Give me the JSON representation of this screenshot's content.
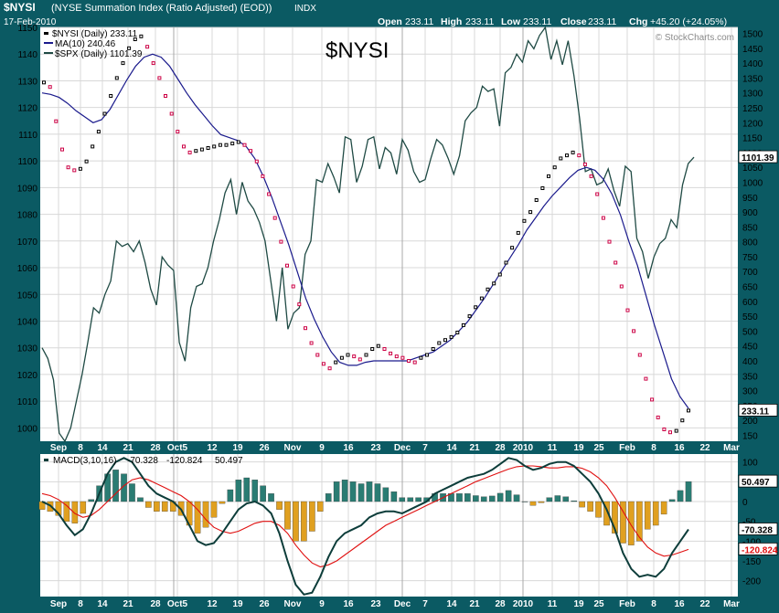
{
  "header": {
    "symbol": "$NYSI",
    "name": "(NYSE Summation Index (Ratio Adjusted) (EOD))",
    "exchange": "INDX",
    "date": "17-Feb-2010",
    "open_label": "Open",
    "open": "233.11",
    "high_label": "High",
    "high": "233.11",
    "low_label": "Low",
    "low": "233.11",
    "close_label": "Close",
    "close": "233.11",
    "chg_label": "Chg",
    "chg": "+45.20 (+24.05%)",
    "watermark": "© StockCharts.com",
    "big_symbol": "$NYSI"
  },
  "legend": {
    "nysi": "$NYSI (Daily) 233.11",
    "ma": "MA(10) 240.46",
    "spx": "$SPX (Daily) 1101.39",
    "macd_label": "MACD(3,10,16)",
    "macd_v1": "-70.328",
    "macd_v2": "-120.824",
    "macd_v3": "50.497"
  },
  "colors": {
    "nysi_up": "#000000",
    "nysi_down": "#cc0044",
    "ma": "#1a1a8c",
    "spx": "#1f4a44",
    "macd_line": "#0d3d3a",
    "signal": "#e01010",
    "hist_pos": "#2a7c73",
    "hist_neg": "#e0a020"
  },
  "chart_data": [
    {
      "type": "scatter",
      "title": "$NYSI",
      "x_labels": [
        "Sep",
        "8",
        "14",
        "21",
        "28",
        "Oct5",
        "12",
        "19",
        "26",
        "Nov",
        "9",
        "16",
        "23",
        "Dec",
        "7",
        "14",
        "21",
        "28",
        "2010",
        "11",
        "19",
        "25",
        "Feb",
        "8",
        "16",
        "22",
        "Mar"
      ],
      "left_axis": {
        "ticks": [
          1000,
          1010,
          1020,
          1030,
          1040,
          1050,
          1060,
          1070,
          1080,
          1090,
          1100,
          1110,
          1120,
          1130,
          1140,
          1150
        ],
        "ylim": [
          995,
          1150
        ]
      },
      "right_axis": {
        "ticks": [
          150,
          200,
          250,
          300,
          350,
          400,
          450,
          500,
          550,
          600,
          650,
          700,
          750,
          800,
          850,
          900,
          950,
          1000,
          1050,
          1100,
          1150,
          1200,
          1250,
          1300,
          1350,
          1400,
          1450,
          1500
        ],
        "ylim": [
          130,
          1520
        ]
      },
      "right_markers": {
        "spx_last": "1101.39",
        "nysi_last": "233.11"
      },
      "series": [
        {
          "name": "$NYSI (Daily)",
          "axis": "right",
          "values": [
            1335,
            1320,
            1205,
            1110,
            1050,
            1040,
            1045,
            1070,
            1120,
            1170,
            1230,
            1290,
            1350,
            1400,
            1450,
            1480,
            1490,
            1455,
            1400,
            1350,
            1290,
            1230,
            1170,
            1120,
            1100,
            1105,
            1110,
            1115,
            1120,
            1125,
            1125,
            1130,
            1135,
            1125,
            1105,
            1070,
            1020,
            960,
            880,
            800,
            720,
            650,
            590,
            510,
            460,
            420,
            390,
            375,
            395,
            410,
            420,
            415,
            405,
            420,
            440,
            450,
            440,
            425,
            415,
            410,
            400,
            395,
            410,
            420,
            440,
            460,
            470,
            480,
            495,
            520,
            550,
            580,
            610,
            640,
            660,
            690,
            730,
            780,
            830,
            870,
            900,
            940,
            980,
            1020,
            1050,
            1080,
            1090,
            1100,
            1090,
            1060,
            1020,
            960,
            880,
            800,
            730,
            650,
            570,
            500,
            420,
            340,
            270,
            210,
            170,
            160,
            165,
            200,
            233.11
          ]
        },
        {
          "name": "MA(10)",
          "axis": "right",
          "values": [
            1300,
            1295,
            1285,
            1265,
            1240,
            1220,
            1200,
            1210,
            1245,
            1295,
            1345,
            1390,
            1420,
            1430,
            1420,
            1390,
            1345,
            1300,
            1260,
            1225,
            1190,
            1160,
            1150,
            1140,
            1120,
            1080,
            1020,
            950,
            870,
            790,
            700,
            610,
            540,
            480,
            430,
            395,
            385,
            385,
            395,
            400,
            400,
            400,
            400,
            400,
            410,
            420,
            430,
            450,
            470,
            500,
            530,
            570,
            610,
            655,
            700,
            745,
            790,
            840,
            880,
            920,
            955,
            985,
            1015,
            1040,
            1050,
            1040,
            1010,
            960,
            890,
            800,
            720,
            620,
            520,
            430,
            340,
            280,
            240.46
          ]
        },
        {
          "name": "$SPX (Daily)",
          "axis": "left",
          "values": [
            1030,
            1026,
            1018,
            998,
            995,
            1000,
            1010,
            1020,
            1032,
            1045,
            1043,
            1050,
            1055,
            1070,
            1068,
            1069,
            1066,
            1070,
            1062,
            1052,
            1046,
            1064,
            1061,
            1059,
            1032,
            1025,
            1045,
            1053,
            1054,
            1060,
            1070,
            1078,
            1088,
            1093,
            1080,
            1092,
            1085,
            1082,
            1077,
            1070,
            1055,
            1040,
            1060,
            1037,
            1043,
            1045,
            1065,
            1070,
            1093,
            1092,
            1099,
            1094,
            1088,
            1109,
            1108,
            1092,
            1098,
            1108,
            1109,
            1097,
            1105,
            1103,
            1095,
            1108,
            1104,
            1096,
            1092,
            1093,
            1101,
            1108,
            1106,
            1101,
            1095,
            1102,
            1115,
            1118,
            1120,
            1128,
            1126,
            1127,
            1113,
            1133,
            1135,
            1140,
            1137,
            1145,
            1142,
            1147,
            1150,
            1138,
            1145,
            1136,
            1145,
            1132,
            1116,
            1096,
            1097,
            1091,
            1092,
            1097,
            1089,
            1083,
            1098,
            1096,
            1071,
            1066,
            1056,
            1064,
            1069,
            1071,
            1078,
            1075,
            1091,
            1099,
            1101.39
          ]
        }
      ]
    },
    {
      "type": "bar",
      "title": "MACD(3,10,16)",
      "y_ticks": [
        -200,
        -150,
        -100,
        -50,
        0,
        50,
        100
      ],
      "ylim": [
        -240,
        120
      ],
      "right_markers": {
        "hist": "50.497",
        "macd": "-70.328",
        "signal": "-120.824"
      },
      "series": [
        {
          "name": "MACD",
          "values": [
            0,
            -10,
            -30,
            -60,
            -85,
            -70,
            -30,
            20,
            70,
            100,
            110,
            100,
            70,
            40,
            20,
            10,
            0,
            -20,
            -60,
            -100,
            -110,
            -105,
            -80,
            -50,
            -20,
            -5,
            0,
            -10,
            -30,
            -80,
            -150,
            -210,
            -235,
            -230,
            -190,
            -140,
            -100,
            -80,
            -70,
            -60,
            -40,
            -30,
            -25,
            -25,
            -30,
            -20,
            -10,
            0,
            20,
            30,
            40,
            50,
            60,
            65,
            70,
            80,
            95,
            110,
            105,
            90,
            80,
            85,
            95,
            100,
            100,
            90,
            70,
            50,
            20,
            -20,
            -70,
            -130,
            -170,
            -190,
            -185,
            -190,
            -170,
            -130,
            -100,
            -70.328
          ]
        },
        {
          "name": "Signal",
          "values": [
            20,
            15,
            5,
            -10,
            -30,
            -40,
            -35,
            -20,
            0,
            20,
            40,
            55,
            60,
            55,
            45,
            35,
            25,
            15,
            0,
            -20,
            -45,
            -65,
            -75,
            -80,
            -75,
            -65,
            -55,
            -50,
            -50,
            -60,
            -80,
            -110,
            -135,
            -155,
            -165,
            -160,
            -150,
            -135,
            -120,
            -105,
            -90,
            -75,
            -60,
            -50,
            -40,
            -30,
            -20,
            -10,
            0,
            10,
            20,
            30,
            40,
            50,
            58,
            66,
            74,
            82,
            88,
            90,
            90,
            88,
            85,
            85,
            88,
            88,
            84,
            75,
            60,
            40,
            10,
            -25,
            -60,
            -90,
            -115,
            -130,
            -138,
            -135,
            -128,
            -120.824
          ]
        },
        {
          "name": "Histogram",
          "values": [
            -20,
            -25,
            -35,
            -50,
            -55,
            -30,
            5,
            40,
            70,
            80,
            70,
            45,
            10,
            -15,
            -25,
            -25,
            -25,
            -35,
            -60,
            -80,
            -65,
            -40,
            -5,
            30,
            55,
            60,
            55,
            40,
            20,
            -20,
            -70,
            -100,
            -100,
            -75,
            -25,
            20,
            50,
            55,
            50,
            45,
            50,
            45,
            35,
            25,
            10,
            10,
            10,
            10,
            20,
            20,
            20,
            20,
            20,
            15,
            12,
            14,
            21,
            28,
            17,
            0,
            -10,
            -3,
            10,
            15,
            12,
            2,
            -14,
            -25,
            -40,
            -60,
            -80,
            -105,
            -110,
            -100,
            -70,
            -60,
            -32,
            5,
            28,
            50.497
          ]
        }
      ]
    }
  ]
}
